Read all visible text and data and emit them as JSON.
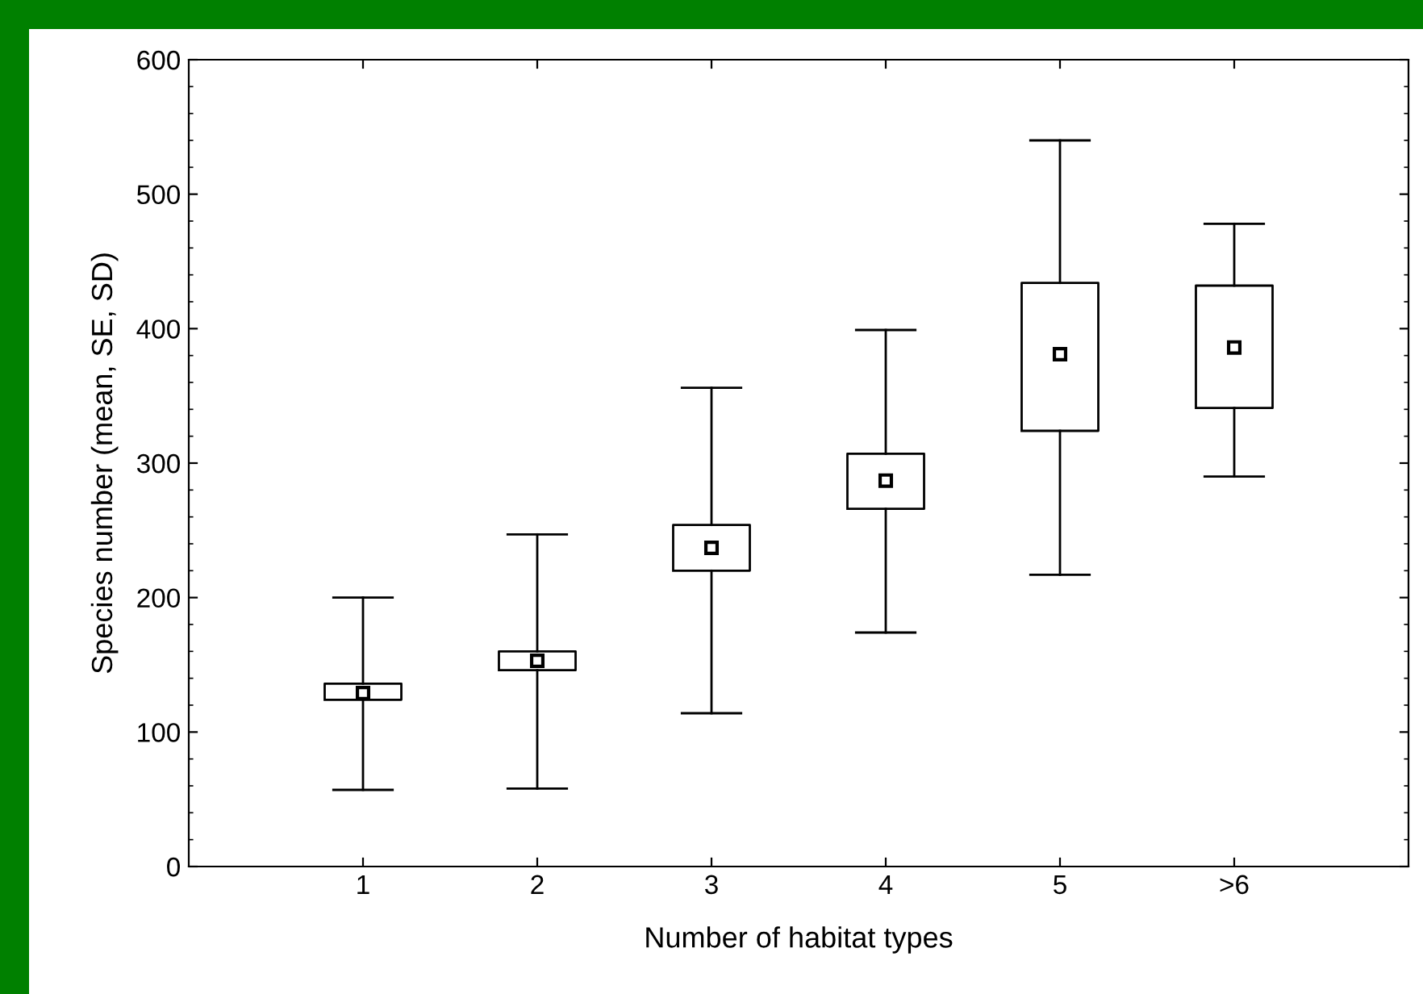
{
  "chart_data": {
    "type": "box",
    "xlabel": "Number of habitat types",
    "ylabel": "Species number (mean, SE, SD)",
    "categories": [
      "1",
      "2",
      "3",
      "4",
      "5",
      ">6"
    ],
    "boxes": [
      {
        "low": 57,
        "q1": 124,
        "median": 129,
        "q3": 136,
        "high": 200
      },
      {
        "low": 58,
        "q1": 146,
        "median": 153,
        "q3": 160,
        "high": 247
      },
      {
        "low": 114,
        "q1": 220,
        "median": 237,
        "q3": 254,
        "high": 356
      },
      {
        "low": 174,
        "q1": 266,
        "median": 287,
        "q3": 307,
        "high": 399
      },
      {
        "low": 217,
        "q1": 324,
        "median": 381,
        "q3": 434,
        "high": 540
      },
      {
        "low": 290,
        "q1": 341,
        "median": 386,
        "q3": 432,
        "high": 478
      }
    ],
    "color": "#000000",
    "ylim": [
      0,
      600
    ],
    "yticks": [
      0,
      100,
      200,
      300,
      400,
      500,
      600
    ],
    "grid": false,
    "legend": false
  }
}
